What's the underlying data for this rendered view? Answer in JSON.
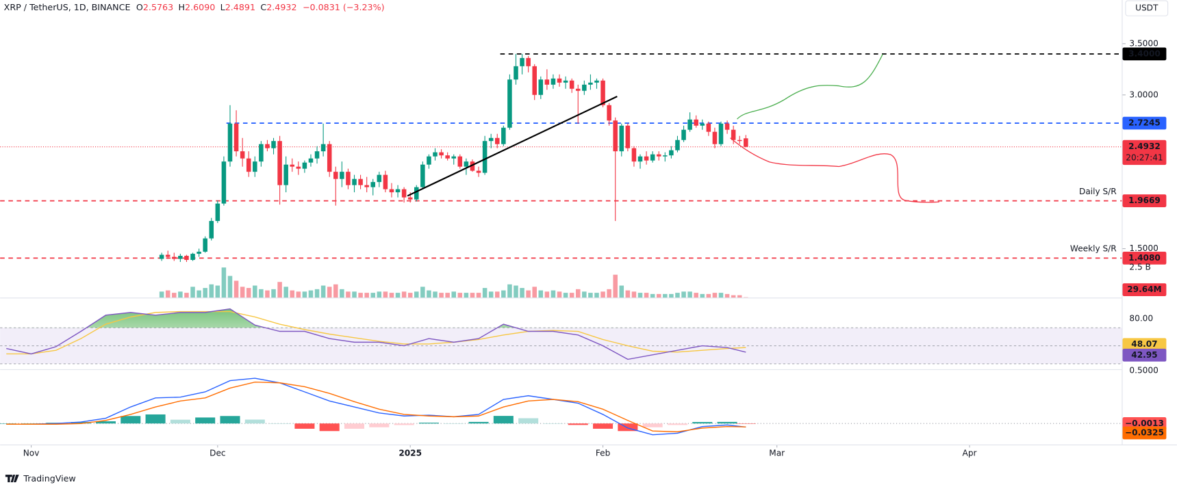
{
  "chart_data": {
    "type": "candlestick",
    "header": {
      "symbol": "XRP / TetherUS, 1D, BINANCE",
      "o_label": "O",
      "open": 2.5763,
      "h_label": "H",
      "high": {
        "value": 2.609,
        "label": "2.6090"
      },
      "l_label": "L",
      "low": 2.4891,
      "c_label": "C",
      "close": 2.4932,
      "change": "−0.0831 (−3.23%)"
    },
    "currency": "USDT",
    "brand": "TradingView",
    "xlim": [
      -26,
      154.5
    ],
    "xticks": [
      {
        "value": -21,
        "label": "Nov"
      },
      {
        "value": 9,
        "label": "Dec"
      },
      {
        "value": 40,
        "label": "2025",
        "bold": true
      },
      {
        "value": 71,
        "label": "Feb"
      },
      {
        "value": 99,
        "label": "Mar"
      },
      {
        "value": 130,
        "label": "Apr"
      }
    ],
    "ylim": [
      1.353,
      3.926
    ],
    "yticks": [
      {
        "value": 1.5,
        "label": "1.5000"
      },
      {
        "value": 3,
        "label": "3.0000"
      },
      {
        "value": 3.5,
        "label": "3.5000"
      }
    ],
    "up_color": "#089981",
    "down_color": "#f23645",
    "candles": [
      [
        1.4,
        1.46,
        1.38,
        1.44
      ],
      [
        1.44,
        1.48,
        1.4,
        1.42
      ],
      [
        1.42,
        1.46,
        1.38,
        1.4
      ],
      [
        1.4,
        1.45,
        1.37,
        1.43
      ],
      [
        1.43,
        1.44,
        1.37,
        1.39
      ],
      [
        1.39,
        1.46,
        1.38,
        1.45
      ],
      [
        1.45,
        1.5,
        1.42,
        1.47
      ],
      [
        1.47,
        1.62,
        1.46,
        1.6
      ],
      [
        1.6,
        1.8,
        1.58,
        1.77
      ],
      [
        1.77,
        1.97,
        1.75,
        1.94
      ],
      [
        1.94,
        2.4,
        1.92,
        2.35
      ],
      [
        2.35,
        2.9,
        2.3,
        2.72
      ],
      [
        2.72,
        2.85,
        2.4,
        2.45
      ],
      [
        2.45,
        2.58,
        2.3,
        2.38
      ],
      [
        2.38,
        2.45,
        2.2,
        2.25
      ],
      [
        2.25,
        2.4,
        2.2,
        2.35
      ],
      [
        2.35,
        2.55,
        2.3,
        2.52
      ],
      [
        2.52,
        2.56,
        2.45,
        2.48
      ],
      [
        2.48,
        2.58,
        2.42,
        2.55
      ],
      [
        2.55,
        2.6,
        1.93,
        2.12
      ],
      [
        2.12,
        2.4,
        2.05,
        2.32
      ],
      [
        2.32,
        2.38,
        2.25,
        2.3
      ],
      [
        2.3,
        2.35,
        2.22,
        2.28
      ],
      [
        2.28,
        2.36,
        2.24,
        2.34
      ],
      [
        2.34,
        2.42,
        2.3,
        2.38
      ],
      [
        2.38,
        2.5,
        2.33,
        2.45
      ],
      [
        2.45,
        2.72,
        2.4,
        2.52
      ],
      [
        2.52,
        2.55,
        2.2,
        2.25
      ],
      [
        2.25,
        2.3,
        1.92,
        2.18
      ],
      [
        2.18,
        2.35,
        2.1,
        2.25
      ],
      [
        2.25,
        2.28,
        2.08,
        2.12
      ],
      [
        2.12,
        2.22,
        2.05,
        2.18
      ],
      [
        2.18,
        2.22,
        2.08,
        2.12
      ],
      [
        2.12,
        2.2,
        2.05,
        2.1
      ],
      [
        2.1,
        2.18,
        2.02,
        2.15
      ],
      [
        2.15,
        2.25,
        2.1,
        2.22
      ],
      [
        2.22,
        2.26,
        2.05,
        2.08
      ],
      [
        2.08,
        2.14,
        2.0,
        2.05
      ],
      [
        2.05,
        2.12,
        2.0,
        2.08
      ],
      [
        2.08,
        2.1,
        1.95,
        2.0
      ],
      [
        2.0,
        2.05,
        1.95,
        1.98
      ],
      [
        1.98,
        2.12,
        1.96,
        2.1
      ],
      [
        2.1,
        2.35,
        2.08,
        2.32
      ],
      [
        2.32,
        2.42,
        2.28,
        2.4
      ],
      [
        2.4,
        2.48,
        2.36,
        2.44
      ],
      [
        2.44,
        2.47,
        2.38,
        2.41
      ],
      [
        2.41,
        2.44,
        2.36,
        2.38
      ],
      [
        2.38,
        2.42,
        2.32,
        2.4
      ],
      [
        2.4,
        2.42,
        2.28,
        2.3
      ],
      [
        2.3,
        2.38,
        2.22,
        2.35
      ],
      [
        2.35,
        2.37,
        2.25,
        2.26
      ],
      [
        2.26,
        2.3,
        2.2,
        2.24
      ],
      [
        2.24,
        2.6,
        2.22,
        2.55
      ],
      [
        2.55,
        2.62,
        2.48,
        2.58
      ],
      [
        2.58,
        2.62,
        2.48,
        2.52
      ],
      [
        2.52,
        2.7,
        2.5,
        2.68
      ],
      [
        2.68,
        3.2,
        2.66,
        3.15
      ],
      [
        3.15,
        3.4,
        3.1,
        3.28
      ],
      [
        3.28,
        3.4,
        3.2,
        3.36
      ],
      [
        3.36,
        3.38,
        3.22,
        3.28
      ],
      [
        3.28,
        3.3,
        2.95,
        3.0
      ],
      [
        3.0,
        3.18,
        2.96,
        3.15
      ],
      [
        3.15,
        3.25,
        3.05,
        3.1
      ],
      [
        3.1,
        3.2,
        3.06,
        3.16
      ],
      [
        3.16,
        3.2,
        3.08,
        3.12
      ],
      [
        3.12,
        3.18,
        3.06,
        3.14
      ],
      [
        3.14,
        3.16,
        3.02,
        3.06
      ],
      [
        3.06,
        3.1,
        2.72,
        3.04
      ],
      [
        3.04,
        3.14,
        3.0,
        3.1
      ],
      [
        3.1,
        3.2,
        3.05,
        3.12
      ],
      [
        3.12,
        3.16,
        3.06,
        3.14
      ],
      [
        3.14,
        3.16,
        2.88,
        2.9
      ],
      [
        2.9,
        2.92,
        2.7,
        2.75
      ],
      [
        2.75,
        2.78,
        1.77,
        2.45
      ],
      [
        2.45,
        2.72,
        2.4,
        2.7
      ],
      [
        2.7,
        2.72,
        2.45,
        2.48
      ],
      [
        2.48,
        2.5,
        2.3,
        2.35
      ],
      [
        2.35,
        2.42,
        2.28,
        2.4
      ],
      [
        2.4,
        2.45,
        2.32,
        2.36
      ],
      [
        2.36,
        2.45,
        2.34,
        2.42
      ],
      [
        2.42,
        2.45,
        2.36,
        2.4
      ],
      [
        2.4,
        2.44,
        2.35,
        2.41
      ],
      [
        2.41,
        2.5,
        2.38,
        2.46
      ],
      [
        2.46,
        2.6,
        2.44,
        2.56
      ],
      [
        2.56,
        2.7,
        2.54,
        2.66
      ],
      [
        2.66,
        2.83,
        2.64,
        2.76
      ],
      [
        2.76,
        2.8,
        2.68,
        2.7
      ],
      [
        2.7,
        2.76,
        2.66,
        2.72
      ],
      [
        2.72,
        2.74,
        2.6,
        2.64
      ],
      [
        2.64,
        2.68,
        2.48,
        2.52
      ],
      [
        2.52,
        2.74,
        2.5,
        2.72
      ],
      [
        2.72,
        2.75,
        2.62,
        2.66
      ],
      [
        2.66,
        2.7,
        2.52,
        2.56
      ],
      [
        2.56,
        2.6,
        2.52,
        2.55
      ],
      [
        2.5763,
        2.609,
        2.4891,
        2.4932
      ]
    ],
    "levels": [
      {
        "value": 3.4,
        "label": "3.4000",
        "color": "#000000",
        "badge_text": "#ffffff"
      },
      {
        "value": 2.7245,
        "label": "2.7245",
        "color": "#2962ff",
        "badge_text": "#ffffff"
      },
      {
        "value": 1.9669,
        "label": "1.9669",
        "color": "#f23645",
        "badge_text": "#ffffff",
        "name": "Daily S/R"
      },
      {
        "value": 1.408,
        "label": "1.4080",
        "color": "#f23645",
        "badge_text": "#ffffff",
        "name": "Weekly S/R"
      }
    ],
    "last_price": {
      "value": 2.4932,
      "countdown": "20:27:41",
      "color": "#f23645"
    },
    "volume": {
      "ylim": [
        0,
        3.125
      ],
      "yticks": [
        {
          "value": 2.5,
          "label": "2.5 B"
        }
      ],
      "values": [
        0.5,
        0.6,
        0.4,
        0.5,
        0.4,
        0.9,
        0.6,
        0.8,
        1.1,
        1.0,
        2.5,
        1.8,
        1.4,
        0.9,
        0.8,
        1.0,
        0.7,
        0.6,
        0.7,
        1.3,
        0.9,
        0.6,
        0.5,
        0.5,
        0.6,
        0.7,
        1.0,
        0.9,
        1.1,
        0.7,
        0.5,
        0.5,
        0.4,
        0.4,
        0.4,
        0.5,
        0.5,
        0.4,
        0.4,
        0.5,
        0.4,
        0.5,
        0.9,
        0.6,
        0.5,
        0.4,
        0.4,
        0.5,
        0.4,
        0.4,
        0.4,
        0.4,
        0.8,
        0.5,
        0.5,
        0.6,
        1.1,
        1.0,
        0.8,
        0.6,
        0.9,
        0.6,
        0.5,
        0.6,
        0.5,
        0.4,
        0.4,
        0.7,
        0.5,
        0.4,
        0.4,
        0.5,
        0.7,
        1.9,
        1.0,
        0.6,
        0.5,
        0.4,
        0.4,
        0.3,
        0.3,
        0.3,
        0.3,
        0.4,
        0.5,
        0.5,
        0.4,
        0.3,
        0.3,
        0.4,
        0.4,
        0.3,
        0.2,
        0.2,
        0.02964
      ],
      "last": {
        "value": 0.02964,
        "label": "29.64M"
      }
    },
    "rsi": {
      "ylim": [
        24,
        101
      ],
      "yticks": [
        {
          "value": 80,
          "label": "80.00"
        }
      ],
      "bands": [
        70,
        50,
        30
      ],
      "x": [
        -25,
        -21,
        -17,
        -13,
        -9,
        -5,
        -1,
        3,
        7,
        11,
        15,
        19,
        23,
        27,
        31,
        35,
        39,
        43,
        47,
        51,
        55,
        59,
        63,
        67,
        71,
        75,
        79,
        83,
        87,
        91,
        94
      ],
      "rsi": {
        "color": "#7e57c2",
        "values": [
          47,
          41,
          49,
          66,
          84,
          87,
          84,
          87,
          87,
          91,
          73,
          66,
          66,
          58,
          54,
          54,
          50,
          58,
          54,
          58,
          74,
          66,
          66,
          62,
          50,
          35,
          40,
          45,
          50,
          48,
          42.95
        ]
      },
      "ma": {
        "color": "#f7c744",
        "values": [
          41,
          41,
          45,
          58,
          74,
          82,
          87,
          88,
          88,
          88,
          82,
          74,
          68,
          63,
          59,
          55,
          52,
          52,
          54,
          57,
          62,
          66,
          67,
          66,
          57,
          50,
          44,
          43,
          45,
          47,
          48.07
        ]
      }
    },
    "macd": {
      "ylim": [
        -0.2,
        0.53
      ],
      "yticks": [
        {
          "value": 0.5,
          "label": "0.5000"
        }
      ],
      "x": [
        -25,
        -21,
        -17,
        -13,
        -9,
        -5,
        -1,
        3,
        7,
        11,
        15,
        19,
        23,
        27,
        31,
        35,
        39,
        43,
        47,
        51,
        55,
        59,
        63,
        67,
        71,
        75,
        79,
        83,
        87,
        91,
        94
      ],
      "macd": {
        "color": "#2962ff",
        "values": [
          -0.007,
          -0.007,
          0,
          0.014,
          0.05,
          0.157,
          0.243,
          0.25,
          0.3,
          0.407,
          0.43,
          0.386,
          0.3,
          0.214,
          0.157,
          0.1,
          0.071,
          0.079,
          0.064,
          0.086,
          0.229,
          0.264,
          0.229,
          0.193,
          0.086,
          -0.043,
          -0.107,
          -0.093,
          -0.029,
          -0.014,
          -0.034
        ]
      },
      "signal": {
        "color": "#ff6d00",
        "values": [
          -0.007,
          -0.007,
          -0.007,
          0,
          0.029,
          0.086,
          0.157,
          0.214,
          0.243,
          0.336,
          0.393,
          0.386,
          0.35,
          0.286,
          0.207,
          0.136,
          0.086,
          0.071,
          0.064,
          0.071,
          0.157,
          0.214,
          0.229,
          0.207,
          0.136,
          0.029,
          -0.071,
          -0.079,
          -0.043,
          -0.029,
          -0.0325
        ]
      },
      "histogram": [
        0,
        0,
        0.007,
        0.014,
        0.021,
        0.071,
        0.086,
        0.036,
        0.057,
        0.071,
        0.037,
        0,
        -0.05,
        -0.072,
        -0.05,
        -0.036,
        -0.015,
        0.008,
        0,
        0.015,
        0.072,
        0.05,
        0,
        -0.014,
        -0.05,
        -0.072,
        -0.036,
        -0.014,
        0.014,
        0.015,
        -0.0013
      ],
      "badges": [
        {
          "value": -0.0013,
          "label": "−0.0013",
          "color": "#ff5252"
        },
        {
          "value": -0.0325,
          "label": "−0.0325",
          "color": "#ff6d00"
        }
      ]
    }
  }
}
